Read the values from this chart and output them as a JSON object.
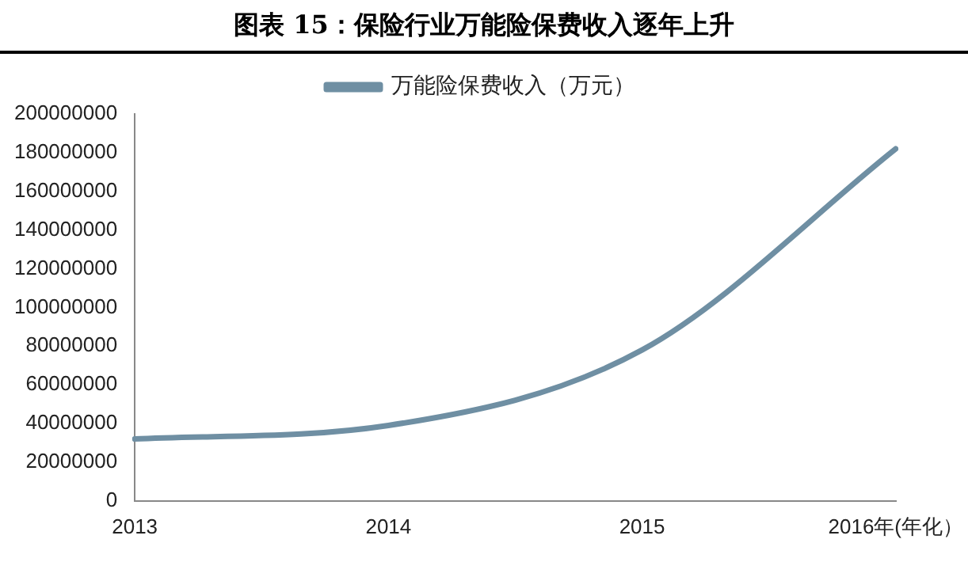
{
  "chart_data": {
    "type": "line",
    "title": "图表 15：保险行业万能险保费收入逐年上升",
    "categories": [
      "2013",
      "2014",
      "2015",
      "2016年(年化）"
    ],
    "series": [
      {
        "name": "万能险保费收入（万元）",
        "color": "#6f8fa3",
        "values": [
          32000000,
          39000000,
          78000000,
          182000000
        ]
      }
    ],
    "ylim": [
      0,
      200000000
    ],
    "yticks": [
      0,
      20000000,
      40000000,
      60000000,
      80000000,
      100000000,
      120000000,
      140000000,
      160000000,
      180000000,
      200000000
    ],
    "grid": false,
    "legend": "top",
    "marker": "none",
    "line_style": "solid"
  }
}
